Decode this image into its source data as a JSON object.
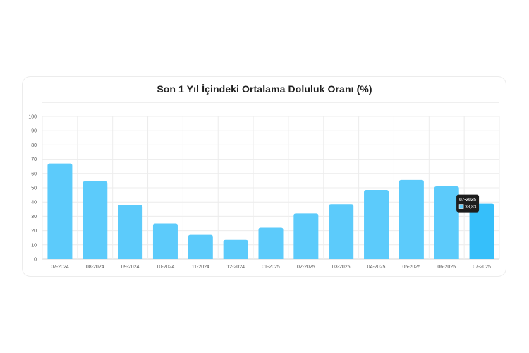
{
  "chart_data": {
    "type": "bar",
    "title": "Son 1 Yıl İçindeki Ortalama Doluluk Oranı (%)",
    "categories": [
      "07-2024",
      "08-2024",
      "09-2024",
      "10-2024",
      "11-2024",
      "12-2024",
      "01-2025",
      "02-2025",
      "03-2025",
      "04-2025",
      "05-2025",
      "06-2025",
      "07-2025"
    ],
    "values": [
      67,
      54.5,
      38,
      25,
      17,
      13.5,
      22,
      32,
      38.5,
      48.5,
      55.5,
      51,
      38.83
    ],
    "ylim": [
      0,
      100
    ],
    "yticks": [
      "0",
      "10",
      "20",
      "30",
      "40",
      "50",
      "60",
      "70",
      "80",
      "90",
      "100"
    ],
    "grid": true,
    "bar_color": "#5ccbfb",
    "highlight_color": "#36bffa",
    "highlight_index": 12,
    "tooltip": {
      "title": "07-2025",
      "value": "38,83",
      "background": "#1d1d1d",
      "swatch_color": "#5ccbfb"
    }
  }
}
